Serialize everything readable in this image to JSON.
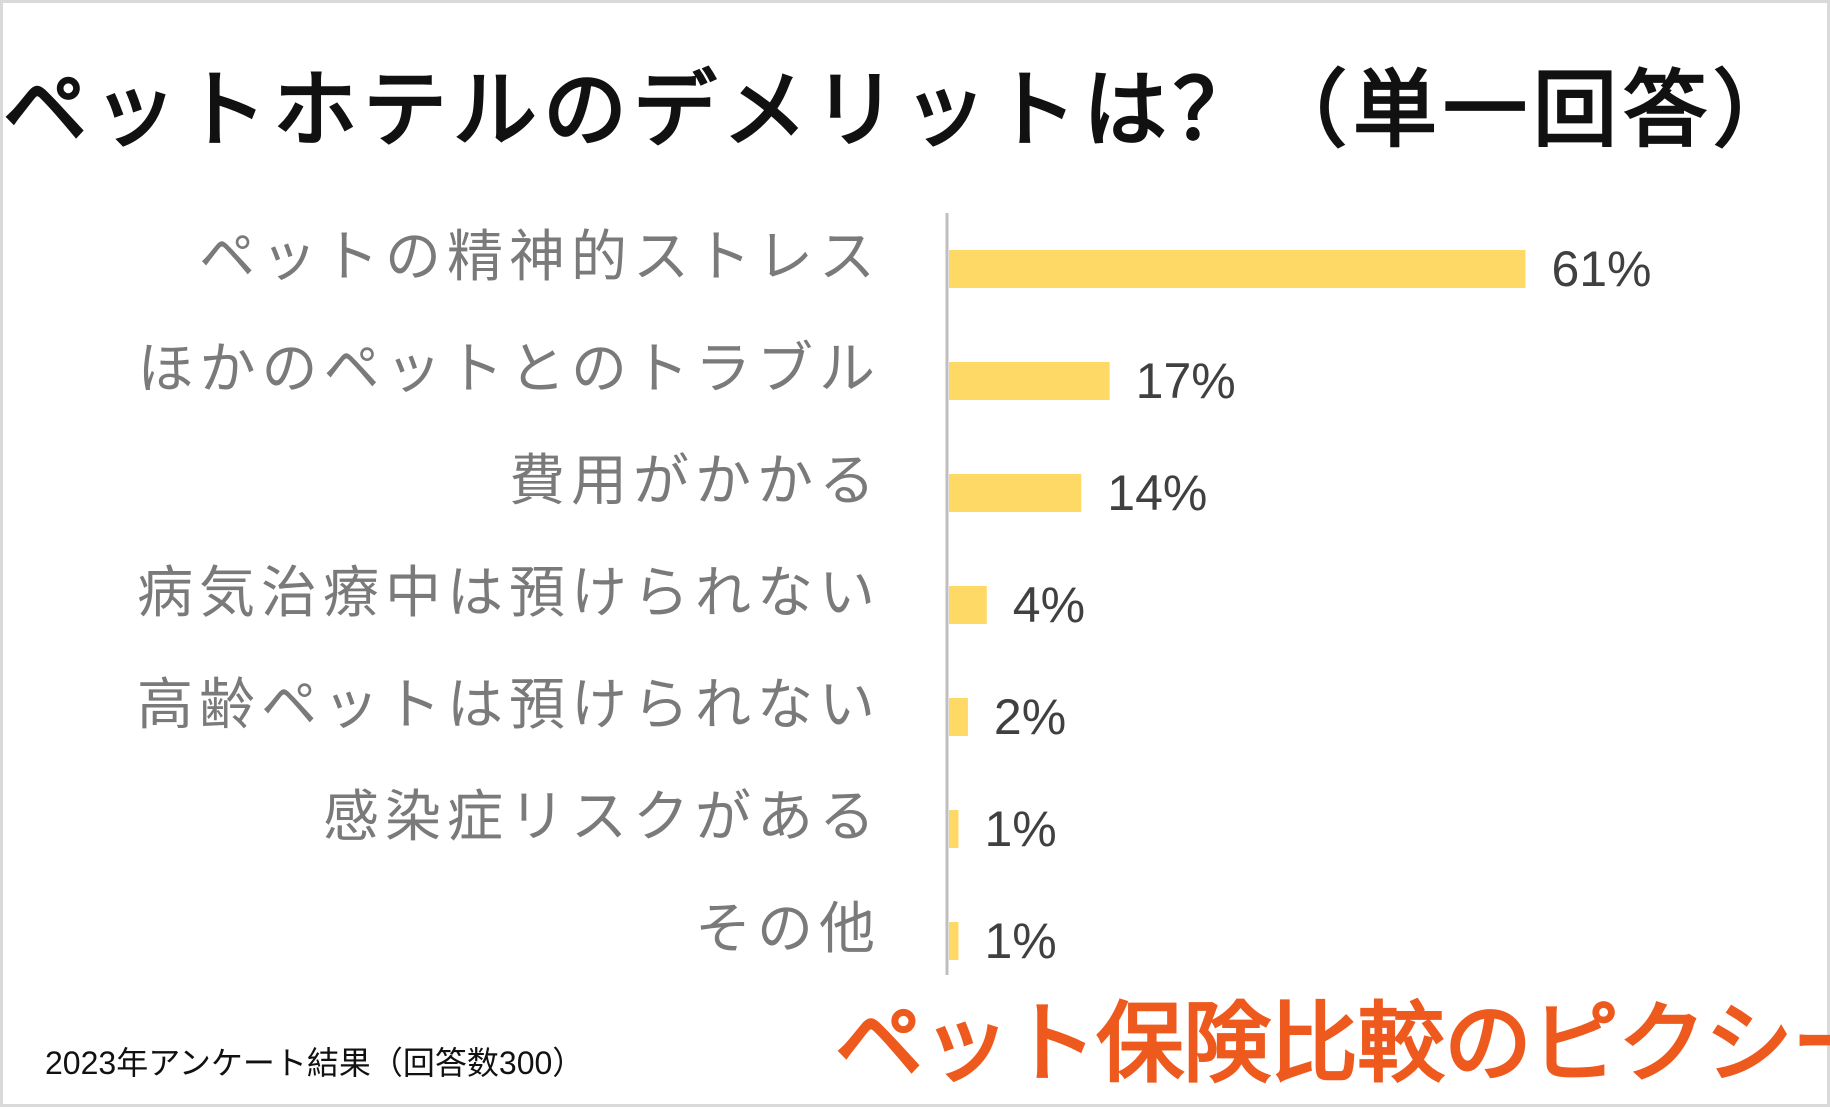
{
  "header": {
    "title": "ペットホテルのデメリットは？（単一回答）"
  },
  "chart_data": {
    "type": "bar",
    "orientation": "horizontal",
    "title": "ペットホテルのデメリットは？（単一回答）",
    "categories": [
      "ペットの精神的ストレス",
      "ほかのペットとのトラブル",
      "費用がかかる",
      "病気治療中は預けられない",
      "高齢ペットは預けられない",
      "感染症リスクがある",
      "その他"
    ],
    "values": [
      61,
      17,
      14,
      4,
      2,
      1,
      1
    ],
    "value_labels": [
      "61%",
      "17%",
      "14%",
      "4%",
      "2%",
      "1%",
      "1%"
    ],
    "xlim": [
      0,
      100
    ],
    "grid": false,
    "bar_color": "#ffd966",
    "axis_color": "#bfbfbf"
  },
  "footer": {
    "note": "2023年アンケート結果（回答数300）",
    "brand": "ペット保険比較のピクシー",
    "brand_color": "#ee5a1e"
  }
}
